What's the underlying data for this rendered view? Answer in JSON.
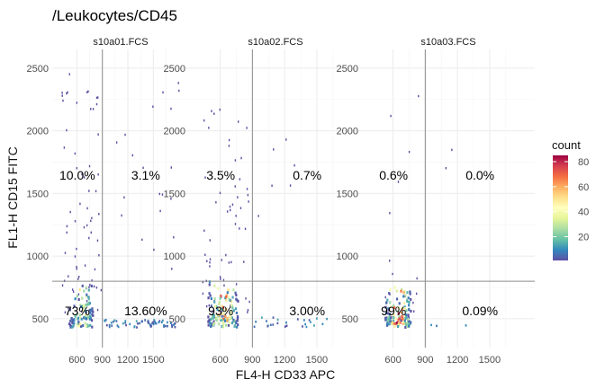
{
  "title": "/Leukocytes/CD45",
  "chart_data": {
    "type": "heatmap",
    "title": "/Leukocytes/CD45",
    "xlabel": "FL4-H CD33 APC",
    "ylabel": "FL1-H CD15 FITC",
    "xlim": [
      310,
      1920
    ],
    "ylim": [
      270,
      2650
    ],
    "x_ticks": [
      600,
      900,
      1200,
      1500
    ],
    "y_ticks": [
      500,
      1000,
      1500,
      2000,
      2500
    ],
    "gate": {
      "x": 900,
      "y": 800
    },
    "grid": true,
    "legend": {
      "title": "count",
      "position": "right",
      "ticks": [
        20,
        40,
        60,
        80
      ],
      "range": [
        1,
        85
      ],
      "colors": [
        "#5E4FA2",
        "#3288BD",
        "#66C2A5",
        "#ABDDA4",
        "#E6F598",
        "#FFFFBF",
        "#FEE08B",
        "#FDAE61",
        "#F46D43",
        "#D53E4F",
        "#9E0142"
      ]
    },
    "panels": [
      {
        "name": "s10a01.FCS",
        "quadrants": {
          "top_left": "10.0%",
          "top_right": "3.1%",
          "bottom_left": "73%",
          "bottom_right": "13.60%"
        }
      },
      {
        "name": "s10a02.FCS",
        "quadrants": {
          "top_left": "3.5%",
          "top_right": "0.7%",
          "bottom_left": "93%",
          "bottom_right": "3.00%"
        }
      },
      {
        "name": "s10a03.FCS",
        "quadrants": {
          "top_left": "0.6%",
          "top_right": "0.0%",
          "bottom_left": "99%",
          "bottom_right": "0.09%"
        }
      }
    ]
  }
}
